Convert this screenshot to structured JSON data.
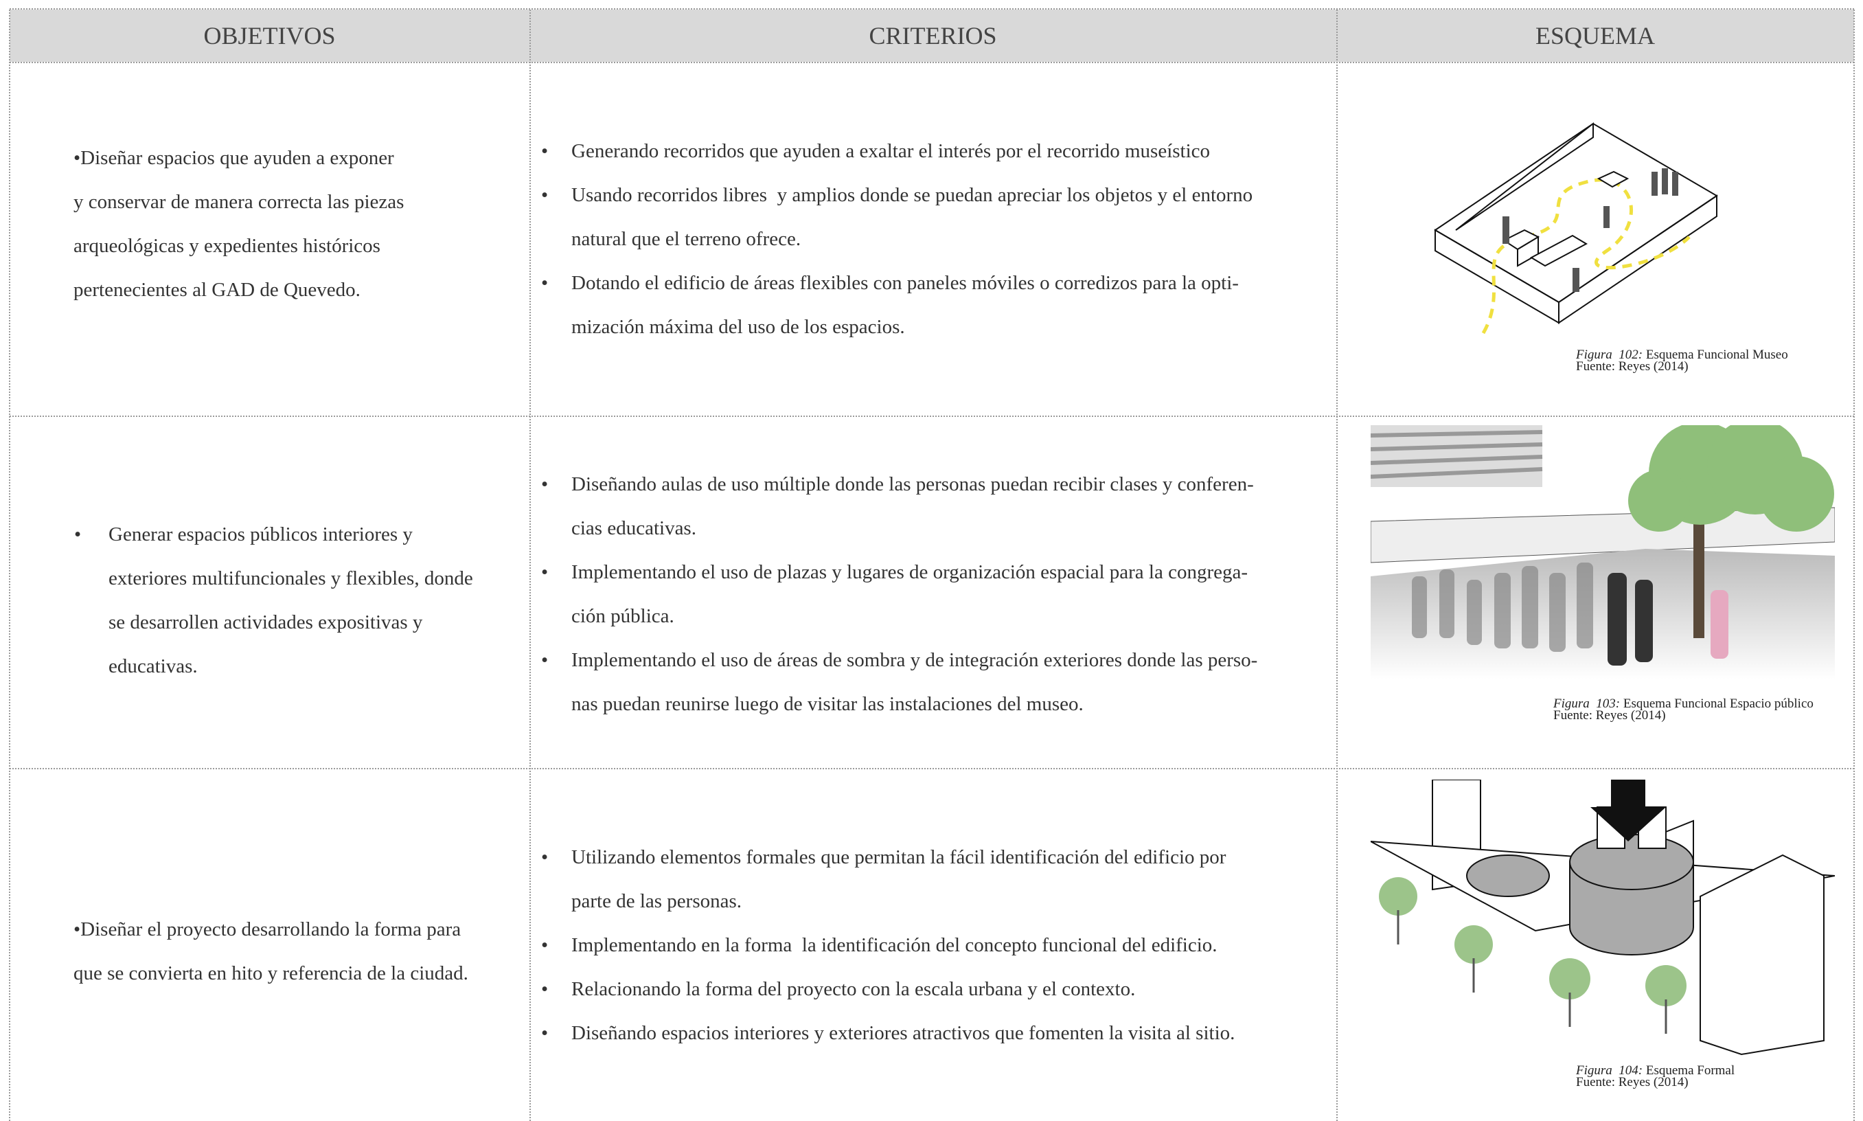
{
  "header": {
    "columns": [
      "OBJETIVOS",
      "CRITERIOS",
      "ESQUEMA"
    ]
  },
  "rows": [
    {
      "objetivo": [
        "•Diseñar espacios que ayuden a exponer",
        "y conservar de manera correcta las piezas",
        "arqueológicas y expedientes históricos",
        "pertenecientes al GAD de Quevedo."
      ],
      "criterios": [
        [
          "Generando recorridos que ayuden a exaltar el interés por el recorrido museístico"
        ],
        [
          "Usando recorridos libres  y amplios donde se puedan apreciar los objetos y el entorno",
          "natural que el terreno ofrece."
        ],
        [
          "Dotando el edificio de áreas flexibles con paneles móviles o corredizos para la opti-",
          "mización máxima del uso de los espacios."
        ]
      ],
      "figura": {
        "label": "Figura  102:",
        "title": "Esquema Funcional Museo",
        "fuente": "Fuente: Reyes (2014)"
      }
    },
    {
      "objetivo": [
        "Generar espacios públicos interiores y",
        "exteriores multifuncionales y flexibles, donde",
        "se desarrollen actividades expositivas y",
        "educativas."
      ],
      "criterios": [
        [
          "Diseñando aulas de uso múltiple donde las personas puedan recibir clases y conferen-",
          "cias educativas."
        ],
        [
          "Implementando el uso de plazas y lugares de organización espacial para la congrega-",
          "ción pública."
        ],
        [
          "Implementando el uso de áreas de sombra y de integración exteriores donde las perso-",
          "nas puedan reunirse luego de visitar las instalaciones del museo."
        ]
      ],
      "figura": {
        "label": "Figura  103:",
        "title": "Esquema Funcional Espacio público",
        "fuente": "Fuente: Reyes (2014)"
      }
    },
    {
      "objetivo": [
        "•Diseñar el proyecto desarrollando la forma para",
        "que se convierta en hito y referencia de la ciudad."
      ],
      "criterios": [
        [
          "Utilizando elementos formales que permitan la fácil identificación del edificio por",
          "parte de las personas."
        ],
        [
          "Implementando en la forma  la identificación del concepto funcional del edificio."
        ],
        [
          "Relacionando la forma del proyecto con la escala urbana y el contexto."
        ],
        [
          "Diseñando espacios interiores y exteriores atractivos que fomenten la visita al sitio."
        ]
      ],
      "figura": {
        "label": "Figura  104:",
        "title": "Esquema Formal",
        "fuente": "Fuente: Reyes (2014)"
      }
    }
  ]
}
